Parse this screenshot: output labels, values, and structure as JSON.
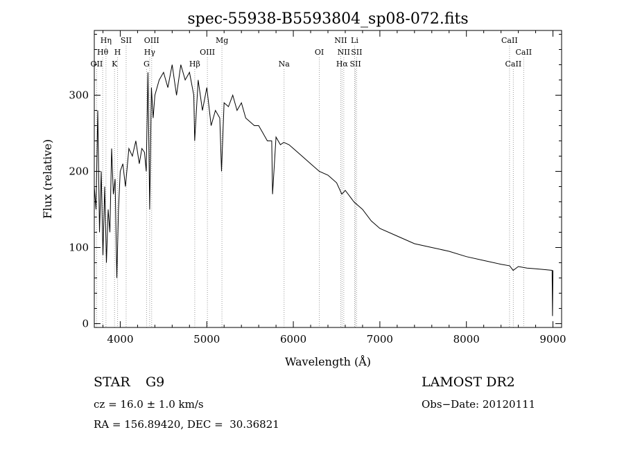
{
  "chart_data": {
    "type": "line",
    "title": "spec-55938-B5593804_sp08-072.fits",
    "xlabel": "Wavelength (Å)",
    "ylabel": "Flux (relative)",
    "xlim": [
      3700,
      9100
    ],
    "ylim": [
      -5,
      385
    ],
    "xticks": [
      4000,
      5000,
      6000,
      7000,
      8000,
      9000
    ],
    "yticks": [
      0,
      100,
      200,
      300
    ],
    "grid": false,
    "line_color": "#000000",
    "marker_line_color": "#999999",
    "series": [
      {
        "x": [
          3700,
          3720,
          3740,
          3760,
          3780,
          3800,
          3820,
          3840,
          3860,
          3880,
          3900,
          3920,
          3940,
          3960,
          3980,
          4000,
          4030,
          4060,
          4100,
          4140,
          4180,
          4220,
          4250,
          4280,
          4300,
          4320,
          4340,
          4360,
          4380,
          4400,
          4450,
          4500,
          4550,
          4600,
          4650,
          4700,
          4750,
          4800,
          4850,
          4860,
          4900,
          4950,
          5000,
          5050,
          5100,
          5150,
          5170,
          5200,
          5250,
          5300,
          5350,
          5400,
          5450,
          5500,
          5550,
          5600,
          5650,
          5700,
          5750,
          5760,
          5800,
          5850,
          5890,
          5950,
          6000,
          6100,
          6200,
          6300,
          6400,
          6500,
          6560,
          6600,
          6700,
          6800,
          6900,
          7000,
          7200,
          7400,
          7600,
          7800,
          8000,
          8200,
          8400,
          8500,
          8540,
          8600,
          8700,
          8800,
          8900,
          8990,
          8995,
          9000
        ],
        "y": [
          180,
          150,
          280,
          120,
          200,
          90,
          180,
          80,
          150,
          120,
          230,
          170,
          190,
          60,
          150,
          200,
          210,
          180,
          230,
          220,
          240,
          210,
          230,
          225,
          200,
          330,
          150,
          310,
          270,
          300,
          320,
          330,
          310,
          340,
          300,
          340,
          320,
          330,
          300,
          240,
          320,
          280,
          310,
          260,
          280,
          270,
          200,
          290,
          285,
          300,
          280,
          290,
          270,
          265,
          260,
          260,
          250,
          240,
          240,
          170,
          245,
          235,
          238,
          235,
          230,
          220,
          210,
          200,
          195,
          185,
          170,
          175,
          160,
          150,
          135,
          125,
          115,
          105,
          100,
          95,
          88,
          83,
          78,
          76,
          70,
          75,
          73,
          72,
          71,
          70,
          10,
          70
        ]
      }
    ],
    "lines": [
      {
        "label": "Hη",
        "x": 3835,
        "row": 0
      },
      {
        "label": "SII",
        "x": 4068,
        "row": 0
      },
      {
        "label": "OIII",
        "x": 4363,
        "row": 0
      },
      {
        "label": "Mg",
        "x": 5175,
        "row": 0
      },
      {
        "label": "NII",
        "x": 6548,
        "row": 0
      },
      {
        "label": "Li",
        "x": 6708,
        "row": 0
      },
      {
        "label": "CaII",
        "x": 8498,
        "row": 0
      },
      {
        "label": "Hθ",
        "x": 3797,
        "row": 1
      },
      {
        "label": "H",
        "x": 3969,
        "row": 1
      },
      {
        "label": "Hγ",
        "x": 4340,
        "row": 1
      },
      {
        "label": "OIII",
        "x": 5007,
        "row": 1
      },
      {
        "label": "OI",
        "x": 6300,
        "row": 1
      },
      {
        "label": "NII",
        "x": 6583,
        "row": 1
      },
      {
        "label": "SII",
        "x": 6731,
        "row": 1
      },
      {
        "label": "CaII",
        "x": 8662,
        "row": 1
      },
      {
        "label": "OII",
        "x": 3727,
        "row": 2
      },
      {
        "label": "K",
        "x": 3934,
        "row": 2
      },
      {
        "label": "G",
        "x": 4304,
        "row": 2
      },
      {
        "label": "Hβ",
        "x": 4861,
        "row": 2
      },
      {
        "label": "Na",
        "x": 5893,
        "row": 2
      },
      {
        "label": "Hα",
        "x": 6563,
        "row": 2
      },
      {
        "label": "SII",
        "x": 6717,
        "row": 2
      },
      {
        "label": "CaII",
        "x": 8542,
        "row": 2
      }
    ]
  },
  "info": {
    "class_label": "STAR",
    "subclass": "G9",
    "survey": "LAMOST DR2",
    "cz": "cz = 16.0 ± 1.0 km/s",
    "obs_date": "Obs−Date: 20120111",
    "coords": "RA = 156.89420, DEC =  30.36821"
  }
}
